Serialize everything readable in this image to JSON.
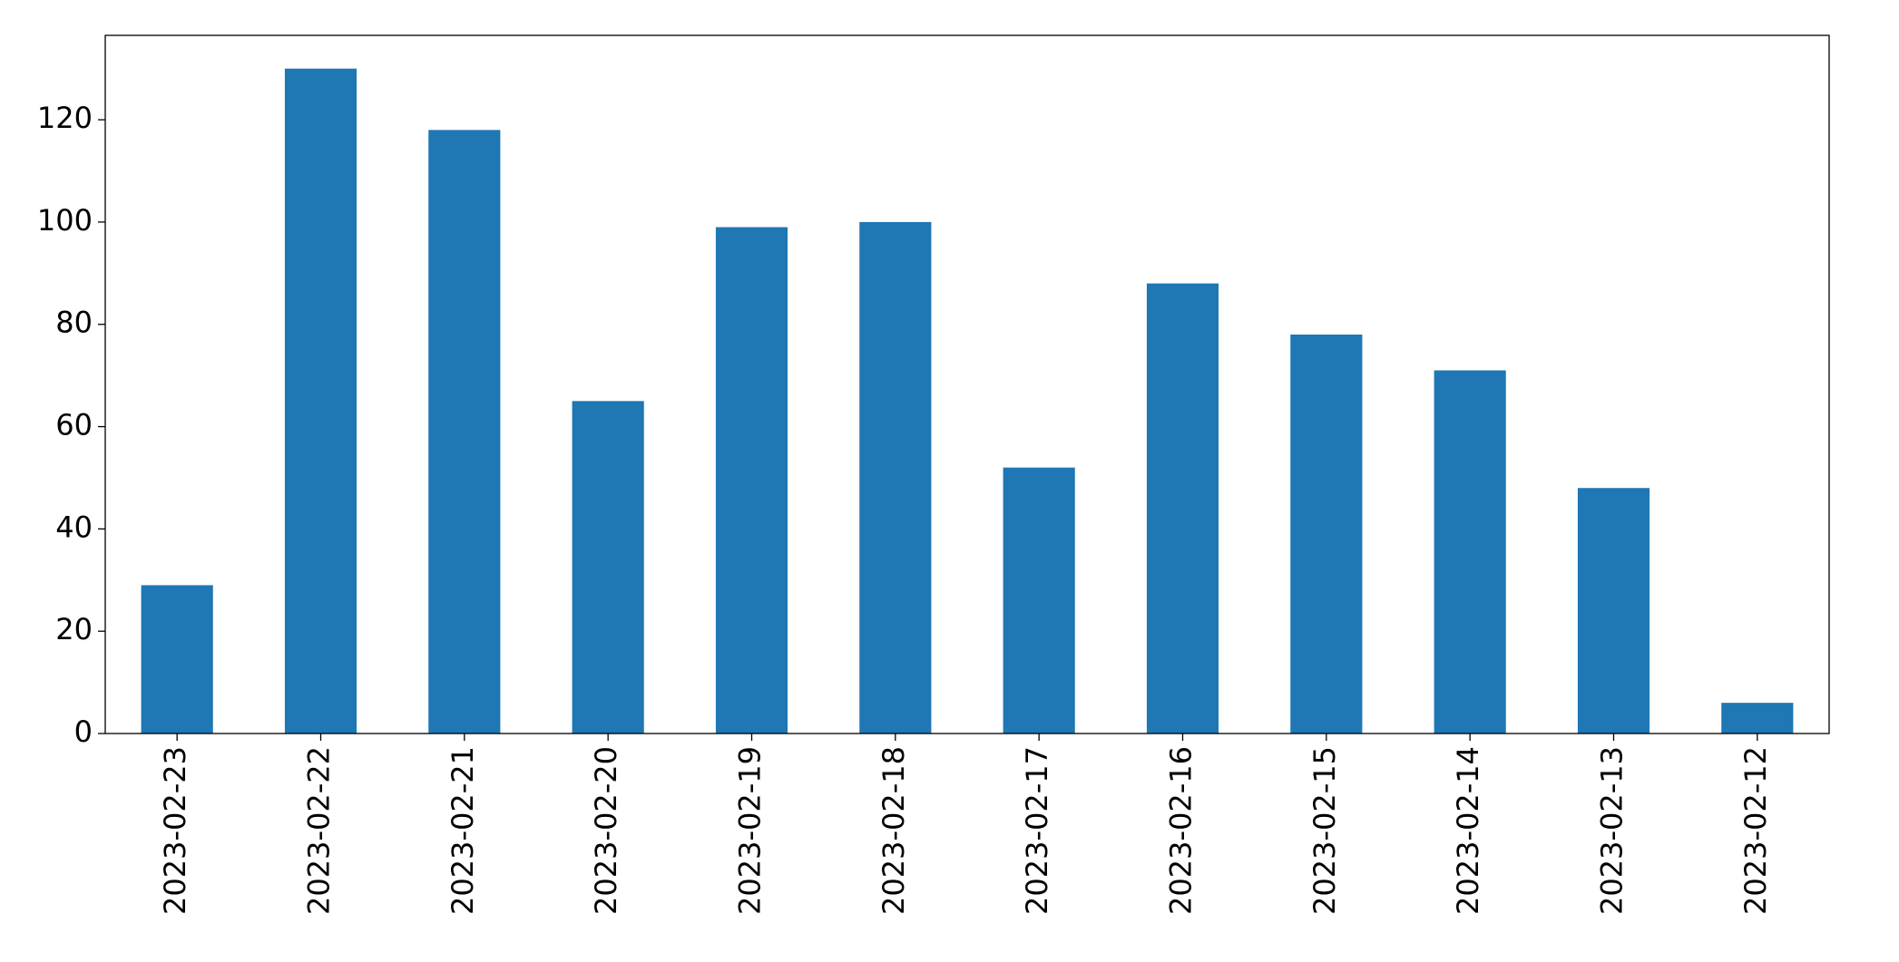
{
  "chart_data": {
    "type": "bar",
    "categories": [
      "2023-02-23",
      "2023-02-22",
      "2023-02-21",
      "2023-02-20",
      "2023-02-19",
      "2023-02-18",
      "2023-02-17",
      "2023-02-16",
      "2023-02-15",
      "2023-02-14",
      "2023-02-13",
      "2023-02-12"
    ],
    "values": [
      29,
      130,
      118,
      65,
      99,
      100,
      52,
      88,
      78,
      71,
      48,
      6
    ],
    "color": "#1f77b4",
    "ylim": [
      0,
      136.5
    ],
    "yticks": [
      0,
      20,
      40,
      60,
      80,
      100,
      120
    ],
    "grid": false
  }
}
